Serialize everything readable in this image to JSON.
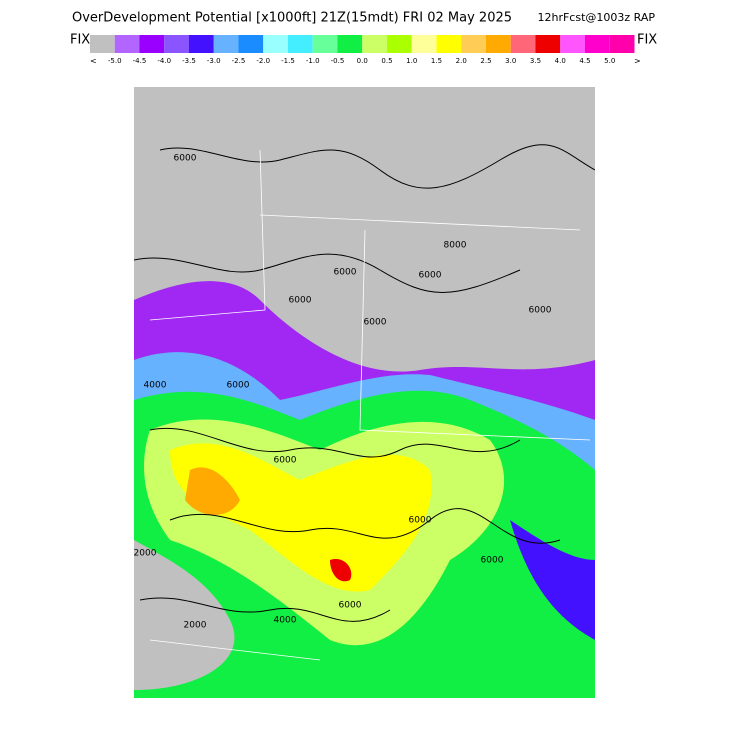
{
  "header": {
    "title": "OverDevelopment Potential [x1000ft] 21Z(15mdt) FRI 02 May 2025",
    "forecast": "12hrFcst@1003z RAP"
  },
  "colorbar": {
    "left_label": "FIX",
    "right_label": "FIX",
    "low_marker": "<",
    "high_marker": ">",
    "colors": [
      "#c0c0c0",
      "#b366ff",
      "#9900ff",
      "#8a55ff",
      "#4411ff",
      "#66b2ff",
      "#1a8cff",
      "#99ffff",
      "#44eeff",
      "#66ff99",
      "#11ee44",
      "#ccff66",
      "#aaff00",
      "#ffff99",
      "#ffff00",
      "#ffcc55",
      "#ffaa00",
      "#ff6677",
      "#ee0000",
      "#ff55ff",
      "#ff00cc",
      "#ff00aa"
    ],
    "ticks": [
      {
        "value": -5,
        "label": "-5.0"
      },
      -4.5,
      {
        "value": -4,
        "label": "-4.0"
      },
      -3.5,
      {
        "value": -3,
        "label": "-3.0"
      },
      -2.5,
      {
        "value": -2,
        "label": "-2.0"
      },
      -1.5,
      {
        "value": -1,
        "label": "-1.0"
      },
      -0.5,
      {
        "value": 0,
        "label": "0.0"
      },
      0.5,
      {
        "value": 1,
        "label": "1.0"
      },
      1.5,
      {
        "value": 2,
        "label": "2.0"
      },
      2.5,
      {
        "value": 3,
        "label": "3.0"
      },
      3.5,
      {
        "value": 4,
        "label": "4.0"
      },
      4.5,
      {
        "value": 5,
        "label": "5.0"
      }
    ]
  },
  "map": {
    "contour_labels": [
      "6000",
      "6000",
      "6000",
      "6000",
      "6000",
      "6000",
      "4000",
      "6000",
      "8000",
      "6000",
      "2000",
      "6000",
      "6000",
      "2000",
      "4000",
      "6000"
    ]
  }
}
